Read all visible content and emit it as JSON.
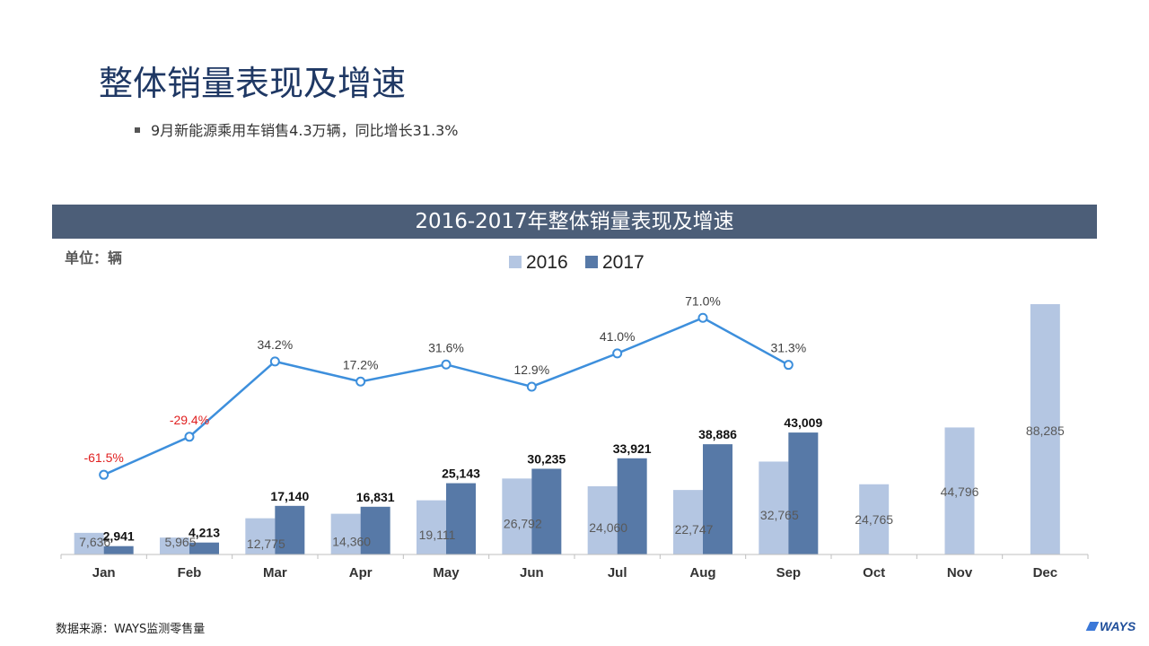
{
  "header": {
    "title": "整体销量表现及增速",
    "bullet": "9月新能源乘用车销售4.3万辆，同比增长31.3%"
  },
  "chart_banner": "2016-2017年整体销量表现及增速",
  "unit_label": "单位：辆",
  "footer": {
    "source": "数据来源：WAYS监测零售量",
    "logo": "WAYS"
  },
  "colors": {
    "series_2016": "#b4c6e2",
    "series_2017": "#5779a7",
    "growth_line": "#3d8fdc",
    "negative_label": "#e02020",
    "banner": "#4c5e78"
  },
  "chart_data": {
    "type": "bar",
    "categories": [
      "Jan",
      "Feb",
      "Mar",
      "Apr",
      "May",
      "Jun",
      "Jul",
      "Aug",
      "Sep",
      "Oct",
      "Nov",
      "Dec"
    ],
    "series": [
      {
        "name": "2016",
        "values": [
          7636,
          5965,
          12775,
          14360,
          19111,
          26792,
          24060,
          22747,
          32765,
          24765,
          44796,
          88285
        ],
        "labels": [
          "7,636",
          "5,965",
          "12,775",
          "14,360",
          "19,111",
          "26,792",
          "24,060",
          "22,747",
          "32,765",
          "24,765",
          "44,796",
          "88,285"
        ]
      },
      {
        "name": "2017",
        "values": [
          2941,
          4213,
          17140,
          16831,
          25143,
          30235,
          33921,
          38886,
          43009,
          null,
          null,
          null
        ],
        "labels": [
          "2,941",
          "4,213",
          "17,140",
          "16,831",
          "25,143",
          "30,235",
          "33,921",
          "38,886",
          "43,009",
          "",
          "",
          ""
        ]
      }
    ],
    "growth": {
      "type": "line",
      "values": [
        -61.5,
        -29.4,
        34.2,
        17.2,
        31.6,
        12.9,
        41.0,
        71.0,
        31.3
      ],
      "labels": [
        "-61.5%",
        "-29.4%",
        "34.2%",
        "17.2%",
        "31.6%",
        "12.9%",
        "41.0%",
        "71.0%",
        "31.3%"
      ]
    },
    "legend_position": "top-center",
    "grid": false
  }
}
